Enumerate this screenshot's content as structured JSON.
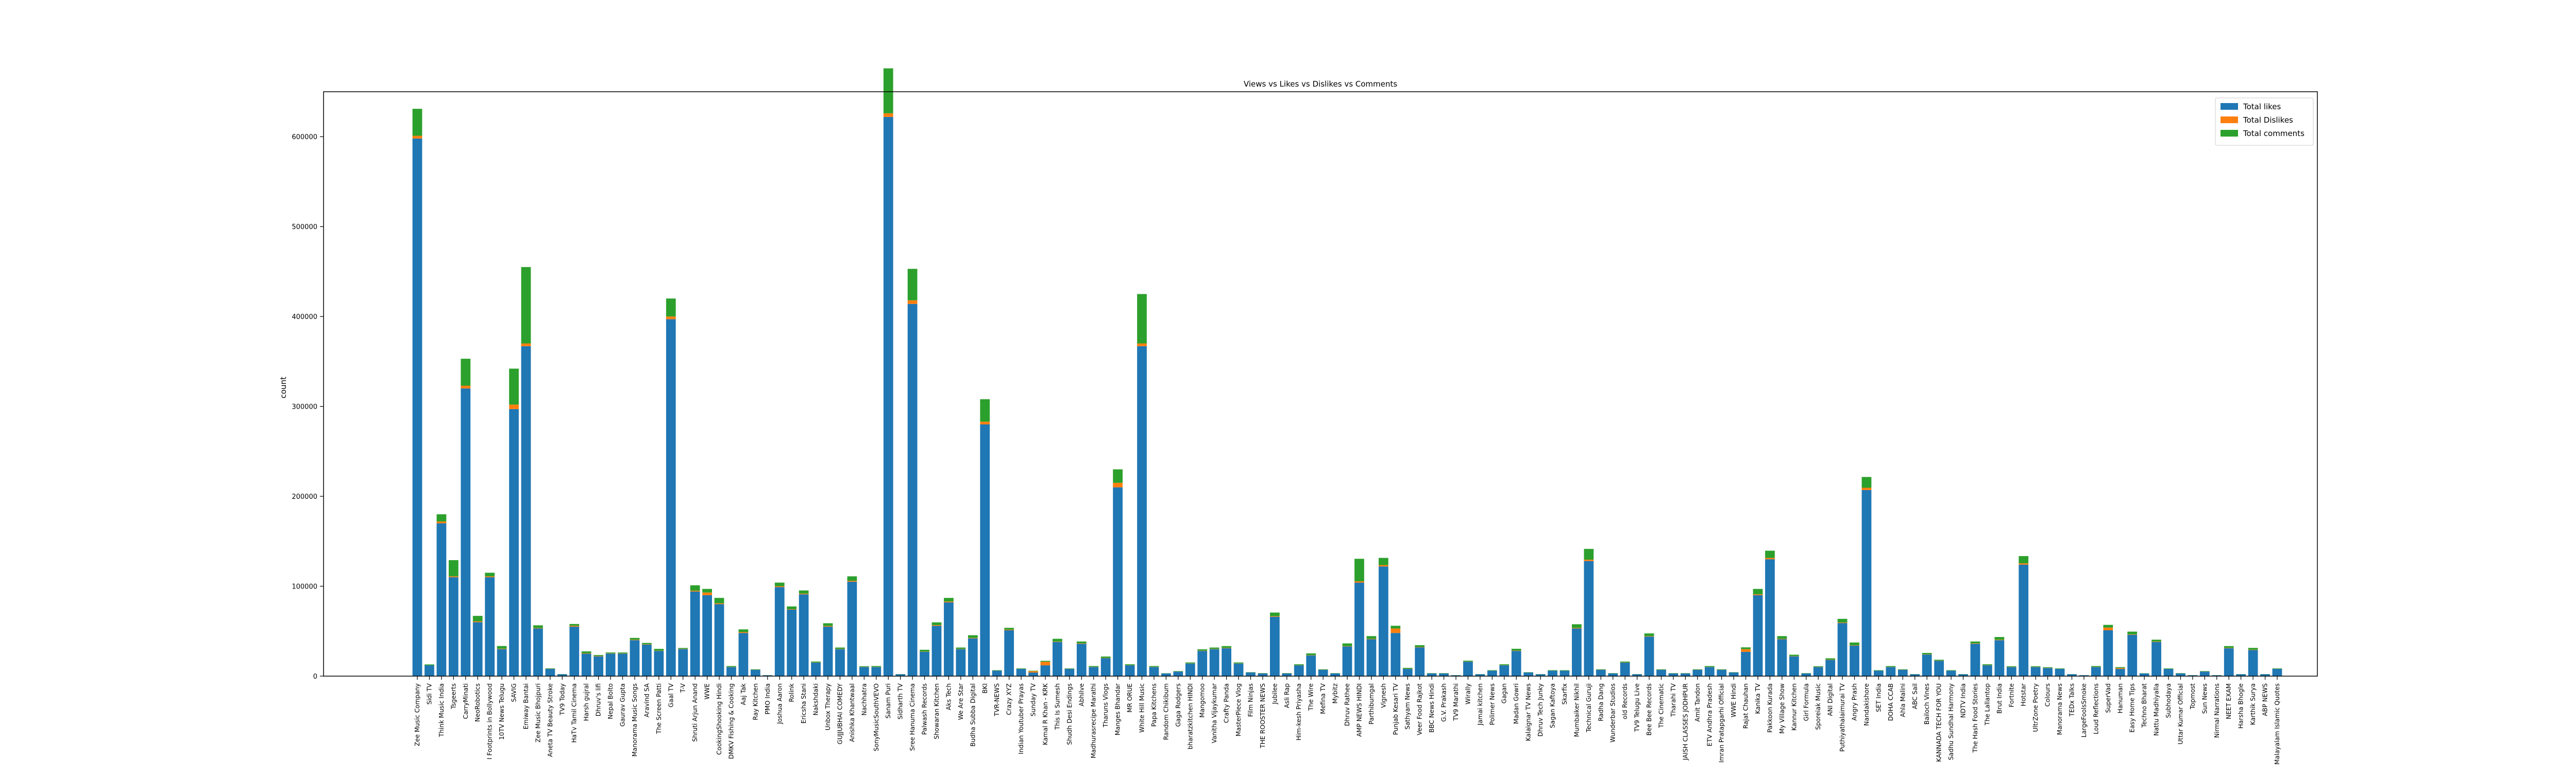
{
  "chart_data": {
    "type": "bar",
    "stacked": true,
    "title": "Views vs Likes vs Dislikes vs Comments",
    "xlabel": "",
    "ylabel": "count",
    "ylim": [
      0,
      650000
    ],
    "yticks": [
      0,
      100000,
      200000,
      300000,
      400000,
      500000,
      600000
    ],
    "legend_position": "top-right",
    "categories": [
      "Zee Music Company",
      "Sidi TV",
      "Think Music India",
      "Tsgeerts",
      "CarryMinati",
      "NeoRobotics",
      "I Footprints in Bollywood",
      "10TV News Telugu",
      "SAVIG",
      "Emiway Bantai",
      "Zee Music Bhojpuri",
      "Aneta TV Beauty Stroke",
      "TV9 Today",
      "HaTv Tamil Cinema",
      "Harsh gujral",
      "Dhruv's lifi",
      "Nepal Bolto",
      "Gaurav Gupta",
      "Manorama Music Songs",
      "Aravind SA",
      "The Screen Patti",
      "Gaal TV",
      "T-V",
      "Shruti Arjun Anand",
      "WWE",
      "CookingShooking Hindi",
      "DMKV Fishing & Cooking",
      "Aaj Tak",
      "Ray Kitchen",
      "PMO India",
      "Joshua Aaron",
      "Rolink",
      "Ericsha Stani",
      "Nakshdaki",
      "Unbox Therapy",
      "GUJJUBHAI COMEDY",
      "Anishka Khantwaal",
      "Nachhatra",
      "SonyMusicSouthVEVO",
      "Sanam Puri",
      "Sidharth TV",
      "Sree Hanuma Cinema",
      "Palwash Records",
      "Showaran Kitchen",
      "Aks Tech",
      "We Are Star",
      "Budha Subba Digital",
      "BKI",
      "TVR-NEWS",
      "Crazy XYZ",
      "Indian Youtuber Prayas",
      "Sunday TV",
      "Kamal R Khan - KRK",
      "This Is Sumesh",
      "Shudh Desi Endings",
      "Abhilve",
      "Madhurasrecipe Marathi",
      "Tharuns Vlogs",
      "Manges Bhandar",
      "MR ORUE",
      "White Hill Music",
      "Papa Kitchens",
      "Random Chikibum",
      "Gaga Rodgers",
      "bharatzkitchen HINDI",
      "Mangomoo",
      "Vanitha Vijaykumar",
      "Crafty Panda",
      "MasterPiece Vlog",
      "Film Ninjas",
      "THE ROOSTER NEWS",
      "Jubilee",
      "Asli Rap",
      "Him-kesh Priyasha",
      "The Wire",
      "Mefina TV",
      "Mybitz",
      "Dhruv Rathee",
      "AMP NEWS HINDI",
      "Parthibumgal",
      "Vignesh",
      "Punjab Kesari TV",
      "Sathyam News",
      "Veer Food Rajkot",
      "BBC News Hindi",
      "G.V. Prakash",
      "TV9 Marathi",
      "Wirally",
      "Jamai kitchen",
      "Polimer News",
      "Gagan",
      "Madan Gowri",
      "Kalaignar TV News",
      "Dhruv Tech Junky",
      "Sagan Kaftoya",
      "Skarfix",
      "Mumbaiker Nikhil",
      "Technical Guruji",
      "Radha Dang",
      "Wunderbar Studios",
      "old Records",
      "TV9 Telugu Live",
      "Bee Bee Records",
      "The Cinematic",
      "Tharahi TV",
      "JAISH CLASSES JODHPUR",
      "Amit Tandon",
      "ETV Andhra Pradesh",
      "Imran Pratapgarhi Official",
      "WWE Hindi",
      "Rajat Chauhan",
      "Kanika TV",
      "Pakkoon Kurada",
      "My Village Show",
      "Kannur Kitchen",
      "Girl Formula",
      "Sporeiak Music",
      "ANI Digital",
      "Puthiyathalaimurai TV",
      "Angry Prash",
      "Nandakishore",
      "SET India",
      "DOHA CCAB",
      "Ahla Malini",
      "ABC Sail",
      "Bailoch Vines",
      "KANNADA TECH FOR YOU",
      "Sadhu Sundhal Harmony",
      "NDTV India",
      "The Hash Food Stories",
      "The Lallantop",
      "Brut India",
      "Fortnite",
      "Hotstar",
      "UltrZone Poetry",
      "Colours",
      "Manorama News",
      "TEDx Talks",
      "LargeFoolsSmoke",
      "Loud Reflections",
      "SuperVad",
      "Hanuman",
      "Easy Home Tips",
      "Techno Bharat",
      "Nattu Madhiyalla",
      "Subhodaya",
      "Uttar Kumar Official",
      "Topmost",
      "Sun News",
      "Nirmal Narrations",
      "NEET EXAM",
      "Harsha Bhogle",
      "Karthik Surya",
      "ABP NEWS",
      "Malayalam Islamic Quotes"
    ],
    "series": [
      {
        "name": "Total likes",
        "color": "#1f77b4",
        "values": [
          598000,
          12000,
          170000,
          110000,
          320000,
          60000,
          110000,
          30000,
          297000,
          367000,
          53000,
          8000,
          2000,
          55000,
          25000,
          22000,
          25000,
          25000,
          40000,
          35000,
          28000,
          397000,
          30000,
          94000,
          90000,
          80000,
          10000,
          48000,
          7000,
          1000,
          99000,
          74000,
          91000,
          15000,
          55000,
          30000,
          105000,
          10000,
          10000,
          622000,
          2000,
          414000,
          27000,
          56000,
          82000,
          30000,
          42000,
          280000,
          6000,
          51000,
          8000,
          4000,
          12000,
          38000,
          8000,
          36000,
          10000,
          20000,
          210000,
          12000,
          367000,
          10000,
          3000,
          5000,
          14000,
          28000,
          30000,
          31000,
          14000,
          4000,
          3000,
          66000,
          3000,
          12000,
          23000,
          7000,
          3000,
          33000,
          104000,
          41000,
          122000,
          48000,
          8000,
          32000,
          3000,
          3000,
          1000,
          16000,
          2000,
          6000,
          12000,
          28000,
          4000,
          2000,
          6000,
          6000,
          53000,
          128000,
          7000,
          3000,
          15000,
          2000,
          44000,
          7000,
          3000,
          3000,
          7000,
          10000,
          7000,
          4000,
          27000,
          90000,
          130000,
          41000,
          22000,
          3000,
          10000,
          18000,
          59000,
          34000,
          207000,
          6000,
          10000,
          7000,
          2000,
          24000,
          17000,
          6000,
          2000,
          36000,
          12000,
          40000,
          10000,
          124000,
          10000,
          9000,
          8000,
          2000,
          1000,
          10000,
          51000,
          8000,
          46000,
          3000,
          38000,
          8000,
          3000,
          1000,
          5000,
          1000,
          31000,
          2000,
          29000,
          2000,
          8000
        ]
      },
      {
        "name": "Total Dislikes",
        "color": "#ff7f0e",
        "values": [
          3000,
          0,
          2000,
          1000,
          3000,
          1000,
          1000,
          500,
          5000,
          3000,
          500,
          200,
          100,
          1000,
          500,
          500,
          300,
          300,
          500,
          400,
          300,
          3000,
          300,
          1000,
          3000,
          1000,
          200,
          1000,
          100,
          50,
          1000,
          500,
          800,
          200,
          800,
          300,
          1000,
          200,
          200,
          4000,
          50,
          4000,
          300,
          800,
          1000,
          300,
          500,
          3000,
          100,
          700,
          100,
          1500,
          4000,
          500,
          100,
          500,
          200,
          300,
          5000,
          200,
          3000,
          200,
          50,
          100,
          200,
          300,
          300,
          400,
          200,
          100,
          100,
          700,
          100,
          200,
          300,
          100,
          50,
          400,
          1500,
          500,
          1500,
          5000,
          200,
          400,
          50,
          50,
          20,
          200,
          50,
          100,
          200,
          400,
          100,
          50,
          100,
          100,
          700,
          1500,
          100,
          50,
          200,
          50,
          500,
          100,
          50,
          50,
          100,
          200,
          100,
          100,
          3000,
          1000,
          1500,
          500,
          300,
          50,
          200,
          300,
          700,
          400,
          2500,
          100,
          200,
          100,
          50,
          300,
          200,
          100,
          50,
          500,
          200,
          500,
          200,
          1500,
          200,
          200,
          100,
          50,
          20,
          200,
          3000,
          1000,
          500,
          50,
          500,
          100,
          50,
          20,
          100,
          20,
          400,
          50,
          400,
          50,
          100
        ]
      },
      {
        "name": "Total comments",
        "color": "#2ca02c",
        "values": [
          30000,
          1000,
          8000,
          18000,
          30000,
          6000,
          4000,
          3000,
          40000,
          85000,
          3000,
          500,
          200,
          2000,
          2000,
          1000,
          1000,
          1000,
          2000,
          1500,
          2000,
          20000,
          1000,
          6000,
          4000,
          6000,
          1000,
          3000,
          500,
          100,
          4000,
          3000,
          3500,
          1000,
          3000,
          1500,
          5000,
          800,
          1000,
          50000,
          200,
          35000,
          2000,
          3000,
          4000,
          1500,
          3000,
          25000,
          500,
          2000,
          500,
          500,
          1000,
          3000,
          500,
          2000,
          1000,
          1500,
          15000,
          1000,
          55000,
          1000,
          200,
          500,
          1000,
          1500,
          1500,
          2000,
          1000,
          300,
          300,
          4000,
          300,
          1000,
          2000,
          500,
          300,
          3000,
          25000,
          3000,
          8000,
          3000,
          1000,
          2000,
          300,
          300,
          100,
          1000,
          200,
          500,
          1000,
          2000,
          300,
          200,
          500,
          500,
          4000,
          12000,
          500,
          300,
          1000,
          200,
          3000,
          500,
          300,
          300,
          500,
          1000,
          500,
          300,
          2000,
          6000,
          8000,
          3000,
          1500,
          300,
          800,
          1500,
          4000,
          3000,
          12000,
          500,
          1000,
          500,
          200,
          1500,
          1000,
          500,
          200,
          2000,
          1000,
          3000,
          800,
          8000,
          800,
          700,
          500,
          200,
          100,
          1000,
          3000,
          1000,
          3000,
          200,
          2000,
          500,
          300,
          100,
          500,
          100,
          2000,
          200,
          2000,
          200,
          500
        ]
      }
    ]
  }
}
